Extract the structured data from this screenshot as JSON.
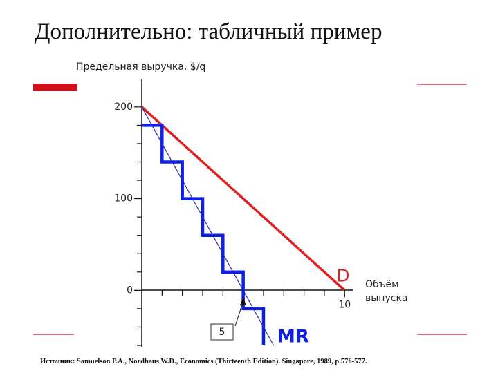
{
  "slide": {
    "title": "Дополнительно: табличный пример",
    "source": "Источник: Samuelson P.A., Nordhaus W.D., Economics (Thirteenth Edition). Singapore, 1989, p.576-577."
  },
  "chart_data": {
    "type": "line",
    "ylabel": "Предельная выручка, $/q",
    "xlabel": "Объём выпуска",
    "xlim": [
      0,
      10.4
    ],
    "ylim": [
      -60,
      230
    ],
    "xticks": [
      10
    ],
    "yticks": [
      0,
      100,
      200
    ],
    "x_minor_ticks": [
      1,
      2,
      3,
      4,
      5,
      6,
      7,
      8,
      9
    ],
    "y_minor_ticks": [
      -60,
      -40,
      -20,
      20,
      40,
      60,
      80,
      120,
      140,
      160,
      180
    ],
    "series": [
      {
        "name": "D",
        "color": "#e02020",
        "width": 3.5,
        "x": [
          0,
          10
        ],
        "values": [
          200,
          0
        ]
      },
      {
        "color": "#2b2bb8",
        "width": 1.2,
        "x": [
          0,
          6.5
        ],
        "values": [
          200,
          -60
        ]
      },
      {
        "name": "MR",
        "color": "#1020e0",
        "width": 4.5,
        "x": [
          0,
          1,
          1,
          2,
          2,
          3,
          3,
          4,
          4,
          5,
          5,
          6,
          6
        ],
        "values": [
          180,
          180,
          140,
          140,
          100,
          100,
          60,
          60,
          20,
          20,
          -20,
          -20,
          -60
        ]
      }
    ],
    "callout": {
      "x": 5
    }
  }
}
